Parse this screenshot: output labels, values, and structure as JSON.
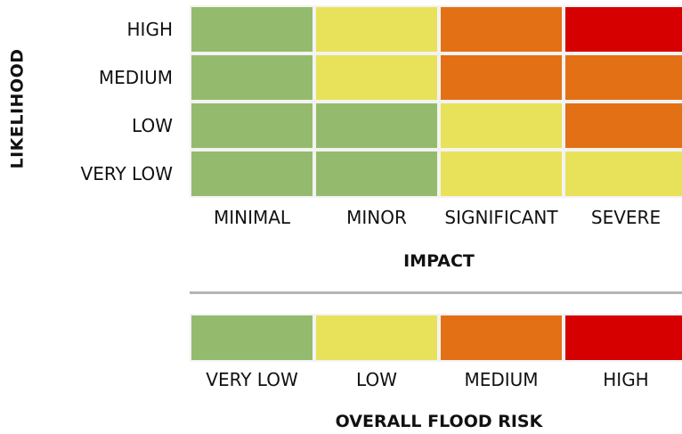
{
  "likelihood": {
    "title": "LIKELIHOOD",
    "levels": [
      "HIGH",
      "MEDIUM",
      "LOW",
      "VERY LOW"
    ]
  },
  "impact": {
    "title": "IMPACT",
    "levels": [
      "MINIMAL",
      "MINOR",
      "SIGNIFICANT",
      "SEVERE"
    ]
  },
  "matrix": [
    [
      "VERY LOW",
      "LOW",
      "MEDIUM",
      "HIGH"
    ],
    [
      "VERY LOW",
      "LOW",
      "MEDIUM",
      "MEDIUM"
    ],
    [
      "VERY LOW",
      "VERY LOW",
      "LOW",
      "MEDIUM"
    ],
    [
      "VERY LOW",
      "VERY LOW",
      "LOW",
      "LOW"
    ]
  ],
  "overall_risk": {
    "title": "OVERALL FLOOD RISK",
    "levels": [
      "VERY LOW",
      "LOW",
      "MEDIUM",
      "HIGH"
    ]
  },
  "colors": {
    "very_low": "#94bb6d",
    "low": "#e8e25a",
    "medium": "#e47015",
    "high": "#d70000"
  }
}
